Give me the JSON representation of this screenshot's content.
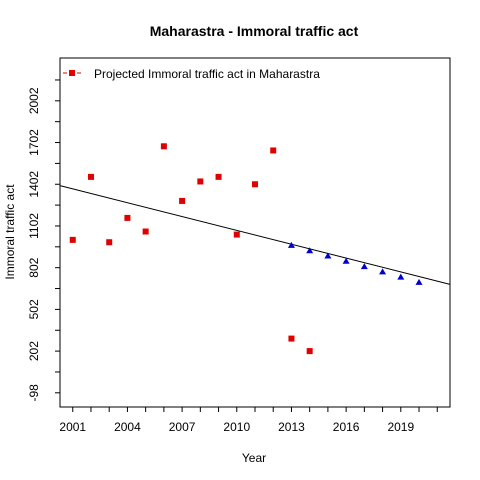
{
  "chart_data": {
    "type": "scatter",
    "title": "Maharastra  -  Immoral traffic act",
    "xlabel": "Year",
    "ylabel": "Immoral traffic act",
    "xlim": [
      2000.3,
      2021.7
    ],
    "ylim": [
      -200,
      2310
    ],
    "x_ticks": [
      2001,
      2004,
      2007,
      2010,
      2013,
      2016,
      2019
    ],
    "x_minor_ticks": [
      2001,
      2002,
      2003,
      2004,
      2005,
      2006,
      2007,
      2008,
      2009,
      2010,
      2011,
      2012,
      2013,
      2014,
      2015,
      2016,
      2017,
      2018,
      2019,
      2020,
      2021
    ],
    "y_ticks": [
      -98,
      202,
      502,
      802,
      1102,
      1402,
      1702,
      2002
    ],
    "y_minor_ticks": [
      -98,
      52,
      202,
      352,
      502,
      652,
      802,
      952,
      1102,
      1252,
      1402,
      1552,
      1702,
      1852,
      2002,
      2152
    ],
    "grid": false,
    "legend": {
      "position": "top-left",
      "entries": [
        "Projected  Immoral traffic act  in  Maharastra"
      ]
    },
    "colors": {
      "actual": "#e00000",
      "projected": "#0000cc",
      "trend": "#000000"
    },
    "series": [
      {
        "name": "Projected  Immoral traffic act  in  Maharastra",
        "marker": "square",
        "x": [
          2001,
          2002,
          2003,
          2004,
          2005,
          2006,
          2007,
          2008,
          2009,
          2010,
          2011,
          2012,
          2013,
          2014
        ],
        "values": [
          1002,
          1455,
          985,
          1160,
          1062,
          1675,
          1282,
          1422,
          1455,
          1040,
          1402,
          1645,
          292,
          202
        ]
      },
      {
        "marker": "triangle",
        "x": [
          2013,
          2014,
          2015,
          2016,
          2017,
          2018,
          2019,
          2020
        ],
        "values": [
          962,
          924,
          886,
          848,
          810,
          772,
          734,
          696
        ]
      }
    ],
    "trend_line": {
      "x": [
        2000.3,
        2021.7
      ],
      "values": [
        1392,
        682
      ]
    }
  }
}
